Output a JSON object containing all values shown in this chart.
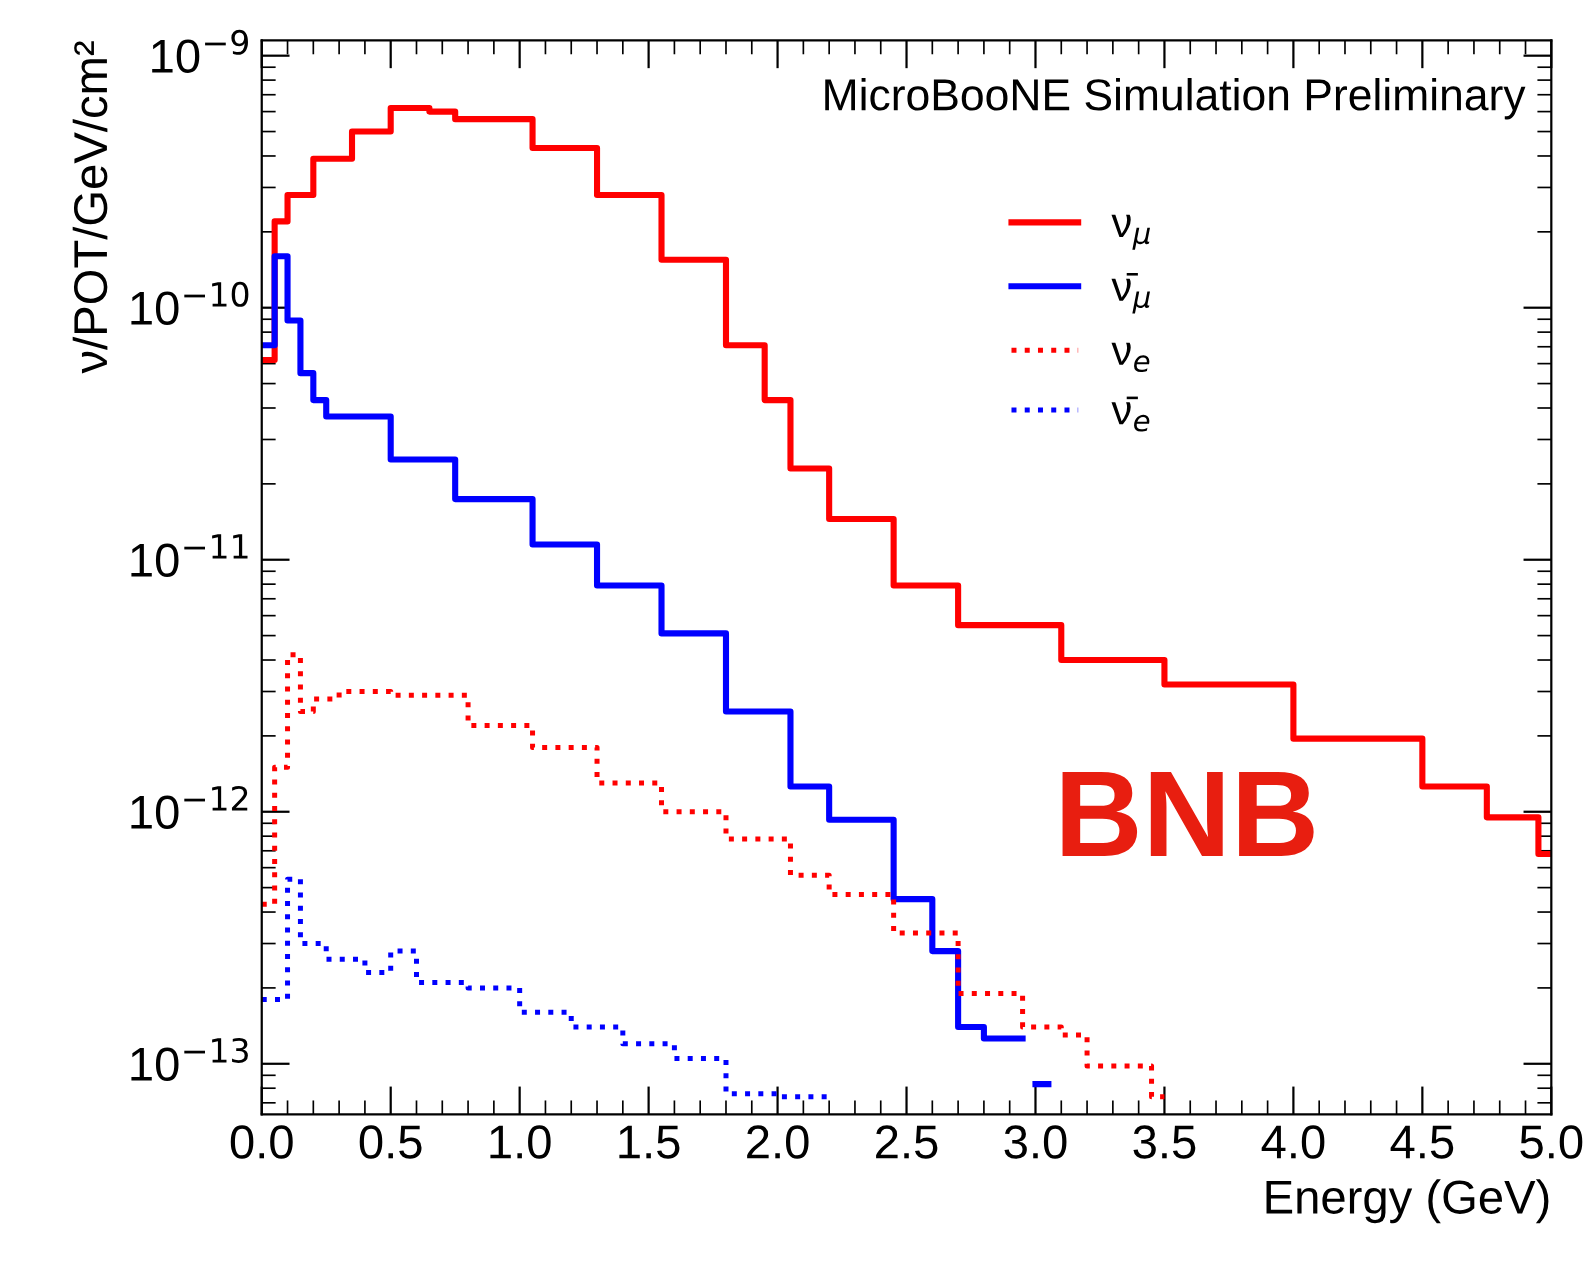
{
  "chart_data": {
    "type": "step",
    "xlabel": "Energy (GeV)",
    "ylabel": "ν/POT/GeV/cm²",
    "annotations": [
      "MicroBooNE Simulation Preliminary",
      "BNB"
    ],
    "log": "y",
    "xlim": [
      0,
      5
    ],
    "xticks": [
      {
        "value": 0,
        "label": "0.0"
      },
      0.5,
      {
        "value": 1,
        "label": "1.0"
      },
      1.5,
      {
        "value": 2,
        "label": "2.0"
      },
      2.5,
      {
        "value": 3,
        "label": "3.0"
      },
      3.5,
      {
        "value": 4,
        "label": "4.0"
      },
      4.5,
      {
        "value": 5,
        "label": "5.0"
      }
    ],
    "ylim": [
      6.3e-14,
      1.15e-09
    ],
    "yticks": [
      {
        "value": 1e-13,
        "label": "10$^{−13}$"
      },
      {
        "value": 1e-12,
        "label": "10$^{−12}$"
      },
      {
        "value": 1e-11,
        "label": "10$^{−11}$"
      },
      {
        "value": 1e-10,
        "label": "10$^{−10}$"
      },
      {
        "value": 1e-09,
        "label": "10$^{−9}$"
      }
    ],
    "grid": false,
    "legend": "top right",
    "series": [
      {
        "name": "ν$_{μ}$",
        "color": "#ff0000",
        "line_style": "solid",
        "x": [
          0,
          0.05,
          0.1,
          0.2,
          0.35,
          0.5,
          0.65,
          0.75,
          1.05,
          1.3,
          1.55,
          1.8,
          1.95,
          2.05,
          2.2,
          2.45,
          2.7,
          3.1,
          3.5,
          4.0,
          4.5,
          4.75,
          4.95,
          5.0
        ],
        "values": [
          6.2e-11,
          2.2e-10,
          2.8e-10,
          3.9e-10,
          5e-10,
          6.2e-10,
          6e-10,
          5.6e-10,
          4.3e-10,
          2.8e-10,
          1.55e-10,
          7.1e-11,
          4.3e-11,
          2.3e-11,
          1.45e-11,
          7.9e-12,
          5.5e-12,
          4e-12,
          3.2e-12,
          1.95e-12,
          1.26e-12,
          9.5e-13,
          6.8e-13,
          6.8e-13
        ]
      },
      {
        "name": "ν̄$_{μ}$",
        "color": "#0000ff",
        "line_style": "solid",
        "x": [
          0,
          0.05,
          0.1,
          0.15,
          0.2,
          0.25,
          0.5,
          0.75,
          1.05,
          1.3,
          1.55,
          1.8,
          2.05,
          2.2,
          2.45,
          2.6,
          2.7,
          2.8,
          2.9,
          2.95,
          3.0,
          3.05
        ],
        "values": [
          7.1e-11,
          1.6e-10,
          8.9e-11,
          5.5e-11,
          4.3e-11,
          3.7e-11,
          2.5e-11,
          1.74e-11,
          1.15e-11,
          7.9e-12,
          5.1e-12,
          2.5e-12,
          1.26e-12,
          9.3e-13,
          4.5e-13,
          2.8e-13,
          1.4e-13,
          1.26e-13,
          1.26e-13,
          null,
          8.3e-14,
          8.3e-14
        ]
      },
      {
        "name": "ν$_{e}$",
        "color": "#ff0000",
        "line_style": "dotted",
        "x": [
          0,
          0.05,
          0.1,
          0.15,
          0.2,
          0.3,
          0.5,
          0.8,
          1.05,
          1.3,
          1.55,
          1.8,
          2.05,
          2.2,
          2.45,
          2.7,
          2.95,
          3.1,
          3.2,
          3.45,
          3.5
        ],
        "values": [
          4.3e-13,
          1.5e-12,
          4.2e-12,
          2.5e-12,
          2.8e-12,
          3e-12,
          2.9e-12,
          2.2e-12,
          1.8e-12,
          1.3e-12,
          1e-12,
          7.8e-13,
          5.6e-13,
          4.7e-13,
          3.3e-13,
          1.9e-13,
          1.4e-13,
          1.3e-13,
          9.8e-14,
          7.4e-14,
          7.4e-14
        ]
      },
      {
        "name": "ν̄$_{e}$",
        "color": "#0000ff",
        "line_style": "dotted",
        "x": [
          0,
          0.1,
          0.15,
          0.25,
          0.4,
          0.5,
          0.6,
          0.8,
          1.0,
          1.2,
          1.4,
          1.6,
          1.8,
          2.0,
          2.2
        ],
        "values": [
          1.8e-13,
          5.4e-13,
          3e-13,
          2.6e-13,
          2.3e-13,
          2.8e-13,
          2.1e-13,
          2e-13,
          1.6e-13,
          1.4e-13,
          1.2e-13,
          1.05e-13,
          7.6e-14,
          7.4e-14,
          7.4e-14
        ]
      }
    ]
  }
}
